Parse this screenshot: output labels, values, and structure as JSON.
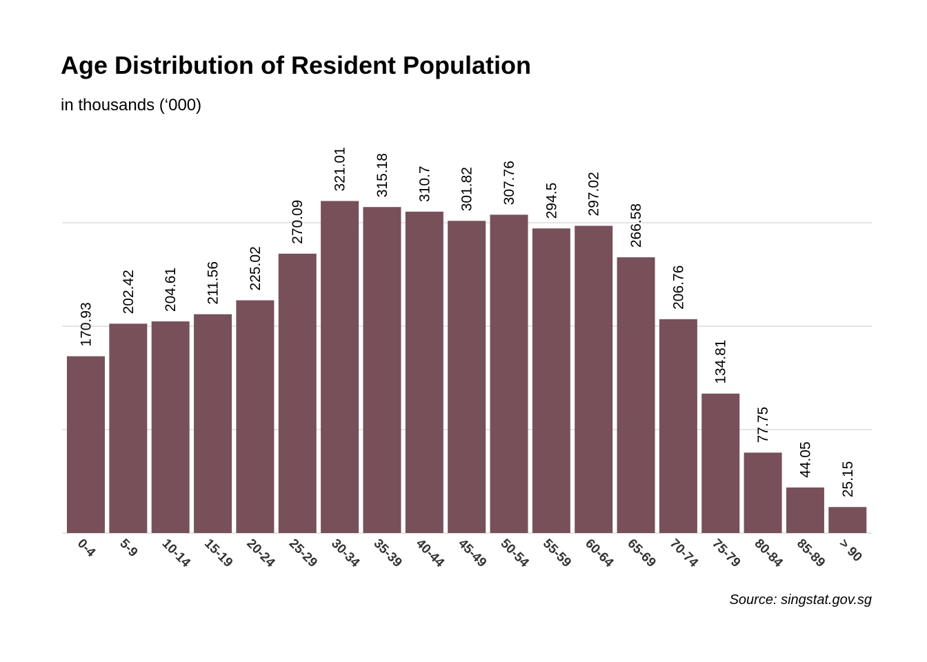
{
  "chart_data": {
    "type": "bar",
    "title": "Age Distribution of Resident Population",
    "subtitle": "in thousands (‘000)",
    "source": "Source: singstat.gov.sg",
    "categories": [
      "0-4",
      "5-9",
      "10-14",
      "15-19",
      "20-24",
      "25-29",
      "30-34",
      "35-39",
      "40-44",
      "45-49",
      "50-54",
      "55-59",
      "60-64",
      "65-69",
      "70-74",
      "75-79",
      "80-84",
      "85-89",
      "> 90"
    ],
    "values": [
      170.93,
      202.42,
      204.61,
      211.56,
      225.02,
      270.09,
      321.01,
      315.18,
      310.7,
      301.82,
      307.76,
      294.5,
      297.02,
      266.58,
      206.76,
      134.81,
      77.75,
      44.05,
      25.15
    ],
    "value_labels": [
      "170.93",
      "202.42",
      "204.61",
      "211.56",
      "225.02",
      "270.09",
      "321.01",
      "315.18",
      "310.7",
      "301.82",
      "307.76",
      "294.5",
      "297.02",
      "266.58",
      "206.76",
      "134.81",
      "77.75",
      "44.05",
      "25.15"
    ],
    "ylim": [
      0,
      300
    ],
    "gridlines": [
      0,
      100,
      200,
      300
    ],
    "grid": true,
    "bar_color": "#77505a",
    "gridline_color": "#c8c8c8"
  }
}
